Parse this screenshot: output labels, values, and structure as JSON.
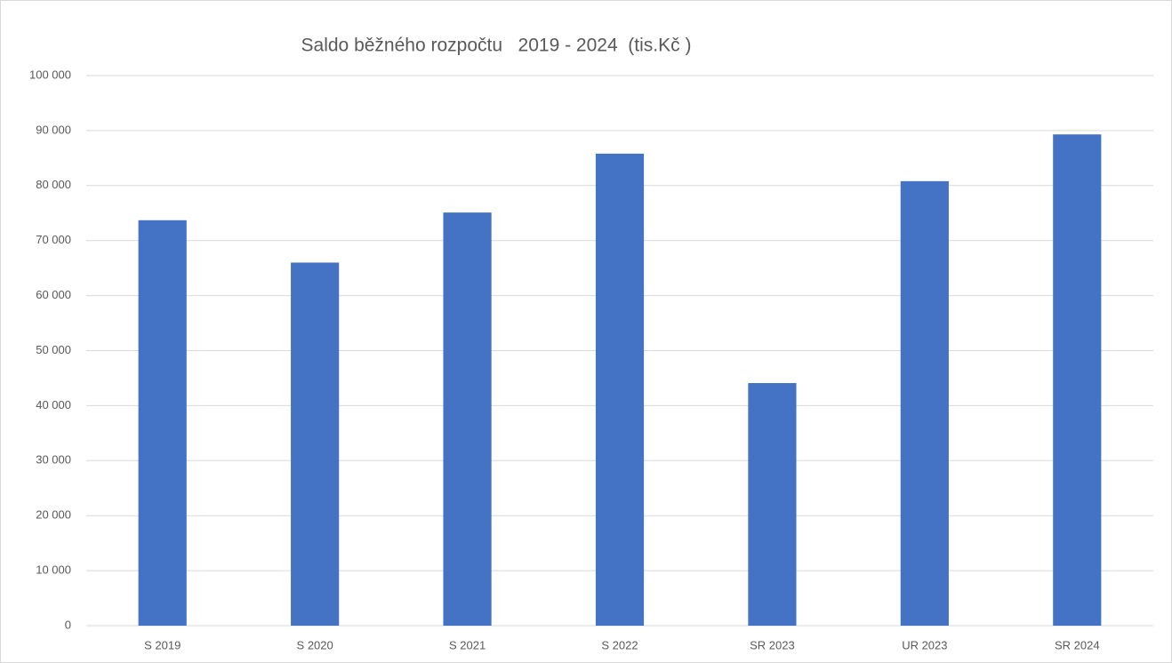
{
  "chart_data": {
    "type": "bar",
    "title": "Saldo běžného rozpočtu   2019 - 2024  (tis.Kč )",
    "categories": [
      "S 2019",
      "S 2020",
      "S 2021",
      "S 2022",
      "SR 2023",
      "UR 2023",
      "SR 2024"
    ],
    "values": [
      73700,
      66000,
      75100,
      85800,
      44100,
      80800,
      89300
    ],
    "color": "#4472c4",
    "ylim": [
      0,
      100000
    ],
    "yticks": [
      0,
      {
        "value": 10000,
        "label": "10 000"
      },
      {
        "value": 20000,
        "label": "20 000"
      },
      {
        "value": 30000,
        "label": "30 000"
      },
      {
        "value": 40000,
        "label": "40 000"
      },
      {
        "value": 50000,
        "label": "50 000"
      },
      {
        "value": 60000,
        "label": "60 000"
      },
      {
        "value": 70000,
        "label": "70 000"
      },
      {
        "value": 80000,
        "label": "80 000"
      },
      {
        "value": 90000,
        "label": "90 000"
      },
      {
        "value": 100000,
        "label": "100 000"
      }
    ],
    "grid": true
  }
}
